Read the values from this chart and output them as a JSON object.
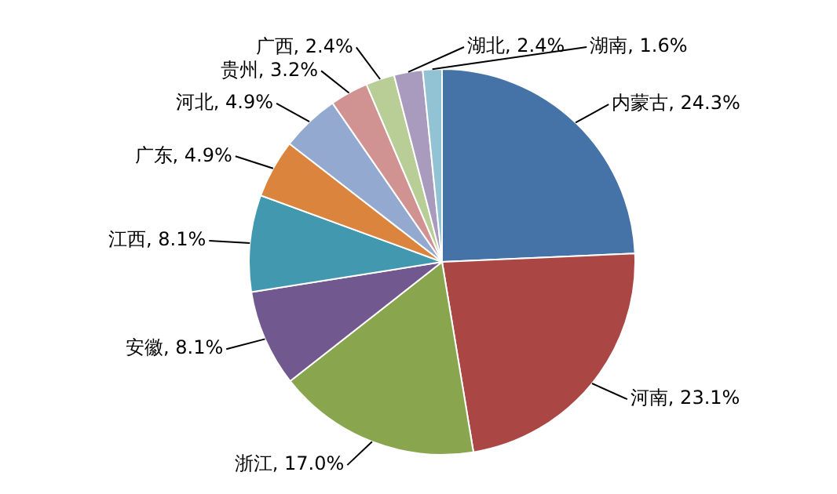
{
  "chart_data": {
    "type": "pie",
    "categories": [
      "内蒙古",
      "河南",
      "浙江",
      "安徽",
      "江西",
      "广东",
      "河北",
      "贵州",
      "广西",
      "湖北",
      "湖南"
    ],
    "values": [
      24.3,
      23.1,
      17.0,
      8.1,
      8.1,
      4.9,
      4.9,
      3.2,
      2.4,
      2.4,
      1.6
    ],
    "colors": [
      "#4572a7",
      "#aa4643",
      "#89a54e",
      "#71588f",
      "#4198af",
      "#db843d",
      "#93a9cf",
      "#d19392",
      "#b9cd96",
      "#a99bbd",
      "#92c3d5"
    ],
    "value_labels": [
      ", 24.3%",
      ", 23.1%",
      ", 17.0%",
      ", 8.1%",
      ", 8.1%",
      ", 4.9%",
      ", 4.9%",
      ", 3.2%",
      ", 2.4%",
      ", 2.4%",
      ", 1.6%"
    ],
    "legend": false
  }
}
